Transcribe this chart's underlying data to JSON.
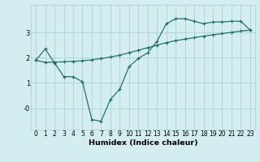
{
  "xlabel": "Humidex (Indice chaleur)",
  "bg_color": "#d4edf0",
  "grid_color": "#aacccc",
  "line_color": "#1a6b6b",
  "line1_x": [
    0,
    1,
    2,
    3,
    4,
    5,
    6,
    7,
    8,
    9,
    10,
    11,
    12,
    13,
    14,
    15,
    16,
    17,
    18,
    19,
    20,
    21,
    22,
    23
  ],
  "line1_y": [
    1.9,
    2.35,
    1.8,
    1.25,
    1.25,
    1.05,
    -0.45,
    -0.52,
    0.35,
    0.75,
    1.65,
    1.97,
    2.2,
    2.65,
    3.35,
    3.55,
    3.55,
    3.45,
    3.35,
    3.42,
    3.42,
    3.45,
    3.45,
    3.1
  ],
  "line2_x": [
    0,
    1,
    2,
    3,
    4,
    5,
    6,
    7,
    8,
    9,
    10,
    11,
    12,
    13,
    14,
    15,
    16,
    17,
    18,
    19,
    20,
    21,
    22,
    23
  ],
  "line2_y": [
    1.9,
    1.82,
    1.83,
    1.84,
    1.86,
    1.88,
    1.92,
    1.97,
    2.03,
    2.1,
    2.2,
    2.3,
    2.4,
    2.5,
    2.6,
    2.68,
    2.74,
    2.8,
    2.86,
    2.91,
    2.96,
    3.01,
    3.06,
    3.1
  ],
  "xlim": [
    -0.5,
    23.5
  ],
  "ylim": [
    -0.85,
    4.1
  ],
  "yticks": [
    0,
    1,
    2,
    3
  ],
  "ytick_labels": [
    "-0",
    "1",
    "2",
    "3"
  ],
  "xticks": [
    0,
    1,
    2,
    3,
    4,
    5,
    6,
    7,
    8,
    9,
    10,
    11,
    12,
    13,
    14,
    15,
    16,
    17,
    18,
    19,
    20,
    21,
    22,
    23
  ],
  "marker": "+",
  "markersize": 3.5,
  "linewidth": 0.85,
  "tick_fontsize": 5.5,
  "xlabel_fontsize": 6.8
}
